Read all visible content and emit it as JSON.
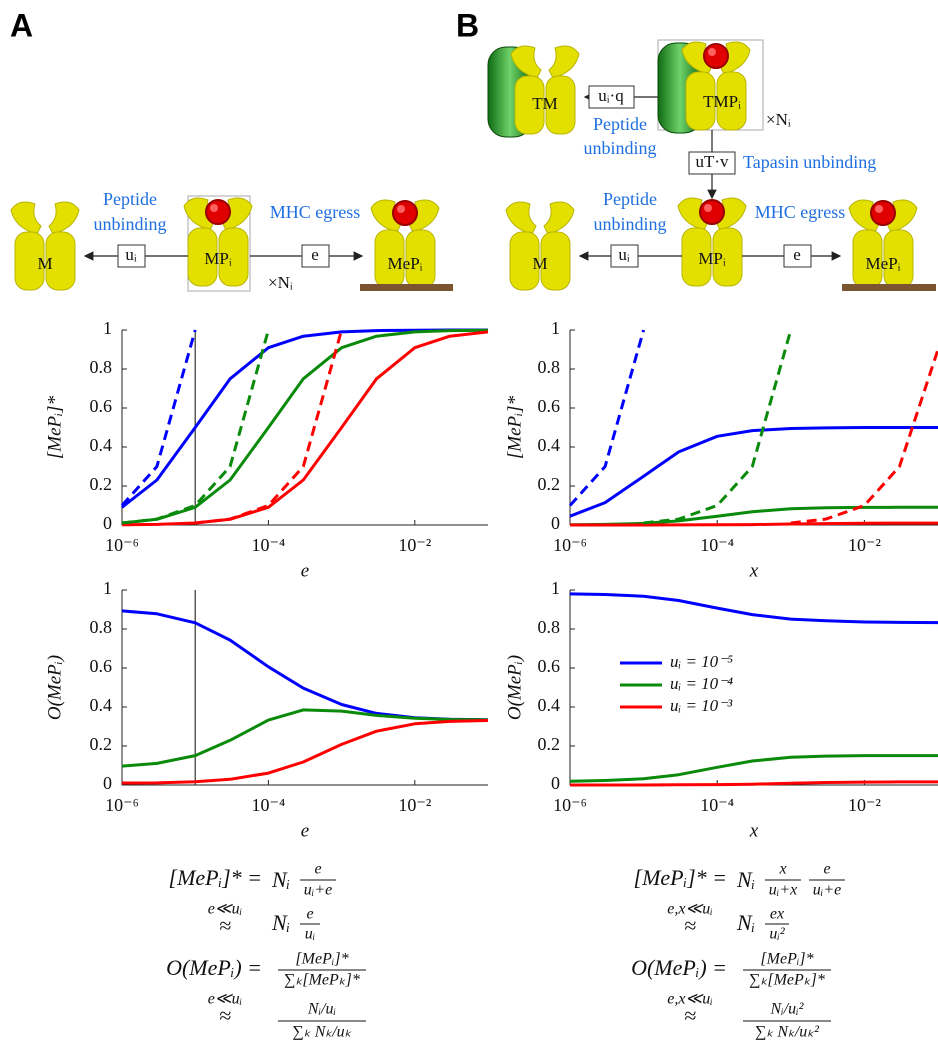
{
  "panels": [
    "A",
    "B"
  ],
  "diagram_a": {
    "m": "M",
    "mp": "MPᵢ",
    "mep": "MePᵢ",
    "rate_unbind": "uᵢ",
    "rate_egress": "e",
    "unbind_line1": "Peptide",
    "unbind_line2": "unbinding",
    "egress": "MHC egress",
    "multiplicity": "×Nᵢ"
  },
  "diagram_b": {
    "tm": "TM",
    "tmp": "TMPᵢ",
    "rate_q": "uᵢ·q",
    "rate_v": "uT·v",
    "top_unbind_line1": "Peptide",
    "top_unbind_line2": "unbinding",
    "tapasin": "Tapasin unbinding",
    "multiplicity": "×Nᵢ",
    "m": "M",
    "mp": "MPᵢ",
    "mep": "MePᵢ",
    "rate_unbind": "uᵢ",
    "rate_egress": "e",
    "unbind_line1": "Peptide",
    "unbind_line2": "unbinding",
    "egress": "MHC egress"
  },
  "equations_a": [
    {
      "lhs": "[MePᵢ]* =",
      "prefix": "Nᵢ",
      "fractions": [
        {
          "num": "e",
          "den": "uᵢ+e"
        }
      ]
    },
    {
      "cond": "e≪uᵢ",
      "rel": "≈",
      "prefix": "Nᵢ",
      "fractions": [
        {
          "num": "e",
          "den": "uᵢ"
        }
      ]
    },
    {
      "lhs": "O(MePᵢ) =",
      "fractions": [
        {
          "num": "[MePᵢ]*",
          "den": "∑ₖ[MePₖ]*"
        }
      ]
    },
    {
      "cond": "e≪uᵢ",
      "rel": "≈",
      "fractions": [
        {
          "num": "Nᵢ/uᵢ",
          "den": "∑ₖ Nₖ/uₖ"
        }
      ]
    }
  ],
  "equations_b": [
    {
      "lhs": "[MePᵢ]* =",
      "prefix": "Nᵢ",
      "fractions": [
        {
          "num": "x",
          "den": "uᵢ+x"
        },
        {
          "num": "e",
          "den": "uᵢ+e"
        }
      ]
    },
    {
      "cond": "e,x≪uᵢ",
      "rel": "≈",
      "prefix": "Nᵢ",
      "fractions": [
        {
          "num": "ex",
          "den": "uᵢ²"
        }
      ]
    },
    {
      "lhs": "O(MePᵢ) =",
      "fractions": [
        {
          "num": "[MePᵢ]*",
          "den": "∑ₖ[MePₖ]*"
        }
      ]
    },
    {
      "cond": "e,x≪uᵢ",
      "rel": "≈",
      "fractions": [
        {
          "num": "Nᵢ/uᵢ²",
          "den": "∑ₖ Nₖ/uₖ²"
        }
      ]
    }
  ],
  "chart_data": [
    {
      "type": "line",
      "y_label": "[MePᵢ]*",
      "x_label": "e",
      "xscale": "log",
      "xlim": [
        1e-06,
        0.1
      ],
      "ylim": [
        0,
        1
      ],
      "xticks": [
        {
          "value": 1e-06,
          "label": "10⁻⁶"
        },
        {
          "value": 0.0001,
          "label": "10⁻⁴"
        },
        {
          "value": 0.01,
          "label": "10⁻²"
        }
      ],
      "yticks": [
        0,
        0.2,
        0.4,
        0.6,
        0.8,
        1
      ],
      "vline": 1e-05,
      "x": [
        1e-06,
        3e-06,
        1e-05,
        3e-05,
        0.0001,
        0.0003,
        0.001,
        0.003,
        0.01,
        0.03,
        0.1
      ],
      "series": [
        {
          "color": "#0000ff",
          "values": [
            0.091,
            0.231,
            0.5,
            0.75,
            0.909,
            0.968,
            0.99,
            0.997,
            0.999,
            1,
            1
          ]
        },
        {
          "color": "#0a8a0a",
          "values": [
            0.01,
            0.029,
            0.091,
            0.231,
            0.5,
            0.75,
            0.909,
            0.968,
            0.99,
            0.997,
            0.999
          ]
        },
        {
          "color": "#ff0000",
          "values": [
            0.001,
            0.003,
            0.01,
            0.029,
            0.091,
            0.231,
            0.5,
            0.75,
            0.909,
            0.968,
            0.99
          ]
        },
        {
          "color": "#0000ff",
          "style": "dashed",
          "x": [
            1e-06,
            3e-06,
            1e-05
          ],
          "values": [
            0.1,
            0.3,
            1
          ]
        },
        {
          "color": "#0a8a0a",
          "style": "dashed",
          "x": [
            1e-06,
            3e-06,
            1e-05,
            3e-05,
            0.0001
          ],
          "values": [
            0.01,
            0.03,
            0.1,
            0.3,
            1
          ]
        },
        {
          "color": "#ff0000",
          "style": "dashed",
          "x": [
            1e-05,
            3e-05,
            0.0001,
            0.0003,
            0.001
          ],
          "values": [
            0.01,
            0.03,
            0.1,
            0.3,
            1
          ]
        }
      ]
    },
    {
      "type": "line",
      "y_label": "O(MePᵢ)",
      "x_label": "e",
      "xscale": "log",
      "xlim": [
        1e-06,
        0.1
      ],
      "ylim": [
        0,
        1
      ],
      "xticks": [
        {
          "value": 1e-06,
          "label": "10⁻⁶"
        },
        {
          "value": 0.0001,
          "label": "10⁻⁴"
        },
        {
          "value": 0.01,
          "label": "10⁻²"
        }
      ],
      "yticks": [
        0,
        0.2,
        0.4,
        0.6,
        0.8,
        1
      ],
      "vline": 1e-05,
      "x": [
        1e-06,
        3e-06,
        1e-05,
        3e-05,
        0.0001,
        0.0003,
        0.001,
        0.003,
        0.01,
        0.03,
        0.1
      ],
      "series": [
        {
          "color": "#0000ff",
          "values": [
            0.893,
            0.878,
            0.832,
            0.743,
            0.606,
            0.497,
            0.413,
            0.367,
            0.345,
            0.337,
            0.335
          ]
        },
        {
          "color": "#0a8a0a",
          "values": [
            0.097,
            0.111,
            0.151,
            0.229,
            0.333,
            0.385,
            0.379,
            0.357,
            0.342,
            0.336,
            0.334
          ]
        },
        {
          "color": "#ff0000",
          "values": [
            0.01,
            0.011,
            0.017,
            0.029,
            0.061,
            0.118,
            0.208,
            0.276,
            0.314,
            0.326,
            0.331
          ]
        }
      ]
    },
    {
      "type": "line",
      "y_label": "[MePᵢ]*",
      "x_label": "x",
      "xscale": "log",
      "xlim": [
        1e-06,
        0.1
      ],
      "ylim": [
        0,
        1
      ],
      "xticks": [
        {
          "value": 1e-06,
          "label": "10⁻⁶"
        },
        {
          "value": 0.0001,
          "label": "10⁻⁴"
        },
        {
          "value": 0.01,
          "label": "10⁻²"
        }
      ],
      "yticks": [
        0,
        0.2,
        0.4,
        0.6,
        0.8,
        1
      ],
      "x": [
        1e-06,
        3e-06,
        1e-05,
        3e-05,
        0.0001,
        0.0003,
        0.001,
        0.003,
        0.01,
        0.03,
        0.1
      ],
      "series": [
        {
          "color": "#0000ff",
          "values": [
            0.045,
            0.115,
            0.25,
            0.375,
            0.455,
            0.484,
            0.495,
            0.498,
            0.5,
            0.5,
            0.5
          ]
        },
        {
          "color": "#0a8a0a",
          "values": [
            0.001,
            0.003,
            0.008,
            0.021,
            0.045,
            0.068,
            0.083,
            0.088,
            0.09,
            0.091,
            0.091
          ]
        },
        {
          "color": "#ff0000",
          "values": [
            0,
            0,
            0,
            0.0003,
            0.0009,
            0.0023,
            0.005,
            0.0074,
            0.009,
            0.0096,
            0.0098
          ]
        },
        {
          "color": "#0000ff",
          "style": "dashed",
          "x": [
            1e-06,
            3e-06,
            1e-05
          ],
          "values": [
            0.1,
            0.3,
            1
          ]
        },
        {
          "color": "#0a8a0a",
          "style": "dashed",
          "x": [
            1e-05,
            3e-05,
            0.0001,
            0.0003,
            0.001
          ],
          "values": [
            0.01,
            0.03,
            0.1,
            0.3,
            1
          ]
        },
        {
          "color": "#ff0000",
          "style": "dashed",
          "x": [
            0.001,
            0.003,
            0.01,
            0.03,
            0.1
          ],
          "values": [
            0.01,
            0.03,
            0.1,
            0.3,
            0.9
          ]
        }
      ]
    },
    {
      "type": "line",
      "y_label": "O(MePᵢ)",
      "x_label": "x",
      "xscale": "log",
      "xlim": [
        1e-06,
        0.1
      ],
      "ylim": [
        0,
        1
      ],
      "xticks": [
        {
          "value": 1e-06,
          "label": "10⁻⁶"
        },
        {
          "value": 0.0001,
          "label": "10⁻⁴"
        },
        {
          "value": 0.01,
          "label": "10⁻²"
        }
      ],
      "yticks": [
        0,
        0.2,
        0.4,
        0.6,
        0.8,
        1
      ],
      "legend": "center-left",
      "x": [
        1e-06,
        3e-06,
        1e-05,
        3e-05,
        0.0001,
        0.0003,
        0.001,
        0.003,
        0.01,
        0.03,
        0.1
      ],
      "series": [
        {
          "name": "uᵢ = 10⁻⁵",
          "color": "#0000ff",
          "values": [
            0.98,
            0.977,
            0.968,
            0.946,
            0.907,
            0.874,
            0.851,
            0.842,
            0.836,
            0.834,
            0.833
          ]
        },
        {
          "name": "uᵢ = 10⁻⁴",
          "color": "#0a8a0a",
          "values": [
            0.019,
            0.023,
            0.032,
            0.053,
            0.091,
            0.123,
            0.142,
            0.148,
            0.151,
            0.151,
            0.151
          ]
        },
        {
          "name": "uᵢ = 10⁻³",
          "color": "#ff0000",
          "values": [
            0,
            0,
            0,
            0.001,
            0.002,
            0.004,
            0.009,
            0.013,
            0.015,
            0.016,
            0.016
          ]
        }
      ]
    }
  ]
}
